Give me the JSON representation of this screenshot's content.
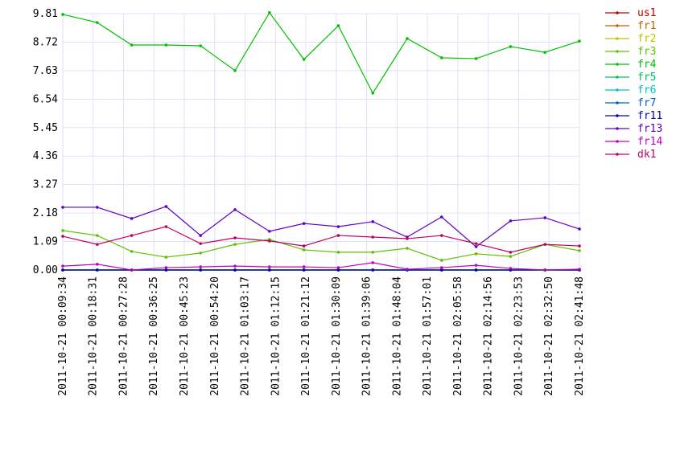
{
  "chart_data": {
    "type": "line",
    "x": [
      574,
      1183,
      1792,
      2401,
      3010,
      3619,
      4228,
      4837,
      5446,
      6055,
      6663,
      7272,
      7881,
      8490,
      9099,
      9708
    ],
    "xlim": [
      574,
      9708
    ],
    "xticks": [
      {
        "value": 574,
        "label": "2011-10-21 00:09:34"
      },
      {
        "value": 1111,
        "label": "2011-10-21 00:18:31"
      },
      {
        "value": 1648,
        "label": "2011-10-21 00:27:28"
      },
      {
        "value": 2185,
        "label": "2011-10-21 00:36:25"
      },
      {
        "value": 2723,
        "label": "2011-10-21 00:45:23"
      },
      {
        "value": 3260,
        "label": "2011-10-21 00:54:20"
      },
      {
        "value": 3797,
        "label": "2011-10-21 01:03:17"
      },
      {
        "value": 4335,
        "label": "2011-10-21 01:12:15"
      },
      {
        "value": 4872,
        "label": "2011-10-21 01:21:12"
      },
      {
        "value": 5409,
        "label": "2011-10-21 01:30:09"
      },
      {
        "value": 5946,
        "label": "2011-10-21 01:39:06"
      },
      {
        "value": 6484,
        "label": "2011-10-21 01:48:04"
      },
      {
        "value": 7021,
        "label": "2011-10-21 01:57:01"
      },
      {
        "value": 7558,
        "label": "2011-10-21 02:05:58"
      },
      {
        "value": 8096,
        "label": "2011-10-21 02:14:56"
      },
      {
        "value": 8633,
        "label": "2011-10-21 02:23:53"
      },
      {
        "value": 9170,
        "label": "2011-10-21 02:32:50"
      },
      {
        "value": 9708,
        "label": "2011-10-21 02:41:48"
      }
    ],
    "ylim": [
      0,
      9.81
    ],
    "yticks": [
      {
        "value": 0,
        "label": "0.00"
      },
      1.09,
      2.18,
      3.27,
      4.36,
      5.45,
      6.54,
      7.63,
      8.72,
      9.81
    ],
    "grid": true,
    "legend": "right",
    "series": [
      {
        "name": "us1",
        "color": "#c00000",
        "values": [
          0,
          0,
          0,
          0,
          0,
          0,
          0,
          0,
          0,
          0,
          0,
          0,
          0,
          0,
          0,
          0
        ]
      },
      {
        "name": "fr1",
        "color": "#c06000",
        "values": [
          0,
          0,
          0,
          0,
          0,
          0,
          0,
          0,
          0,
          0,
          0,
          0,
          0,
          0,
          0,
          0
        ]
      },
      {
        "name": "fr2",
        "color": "#c0c000",
        "values": [
          0,
          0,
          0,
          0,
          0,
          0,
          0,
          0,
          0,
          0,
          0,
          0,
          0,
          0,
          0,
          0
        ]
      },
      {
        "name": "fr3",
        "color": "#60c000",
        "values": [
          1.51,
          1.32,
          0.71,
          0.49,
          0.65,
          0.98,
          1.17,
          0.77,
          0.68,
          0.68,
          0.83,
          0.37,
          0.62,
          0.52,
          0.98,
          0.74
        ]
      },
      {
        "name": "fr4",
        "color": "#00c000",
        "values": [
          9.78,
          9.47,
          8.61,
          8.61,
          8.58,
          7.63,
          9.85,
          8.06,
          9.35,
          6.77,
          8.86,
          8.12,
          8.09,
          8.55,
          8.33,
          8.76
        ]
      },
      {
        "name": "fr5",
        "color": "#00c060",
        "values": [
          0,
          0,
          0,
          0,
          0,
          0,
          0,
          0,
          0,
          0,
          0,
          0,
          0,
          0,
          0,
          0
        ]
      },
      {
        "name": "fr6",
        "color": "#00c0c0",
        "values": [
          0,
          0,
          0,
          0,
          0,
          0,
          0,
          0,
          0,
          0,
          0,
          0,
          0,
          0,
          0,
          0
        ]
      },
      {
        "name": "fr7",
        "color": "#0060c0",
        "values": [
          0,
          0,
          0,
          0,
          0,
          0,
          0,
          0,
          0,
          0,
          0,
          0,
          0,
          0,
          0,
          0
        ]
      },
      {
        "name": "fr11",
        "color": "#0000c0",
        "values": [
          0,
          0,
          0,
          0,
          0,
          0,
          0,
          0,
          0,
          0,
          0,
          0,
          0,
          0,
          0,
          0
        ]
      },
      {
        "name": "fr13",
        "color": "#6000c0",
        "values": [
          2.4,
          2.4,
          1.97,
          2.43,
          1.32,
          2.31,
          1.48,
          1.78,
          1.66,
          1.85,
          1.26,
          2.03,
          0.89,
          1.88,
          2.0,
          1.57
        ]
      },
      {
        "name": "fr14",
        "color": "#c000c0",
        "values": [
          0.15,
          0.22,
          0.0,
          0.09,
          0.12,
          0.15,
          0.12,
          0.12,
          0.09,
          0.28,
          0.03,
          0.09,
          0.18,
          0.06,
          0.0,
          0.03
        ]
      },
      {
        "name": "dk1",
        "color": "#c00060",
        "values": [
          1.29,
          0.98,
          1.32,
          1.66,
          1.01,
          1.23,
          1.11,
          0.92,
          1.32,
          1.26,
          1.2,
          1.32,
          1.01,
          0.68,
          0.98,
          0.92
        ]
      }
    ]
  }
}
